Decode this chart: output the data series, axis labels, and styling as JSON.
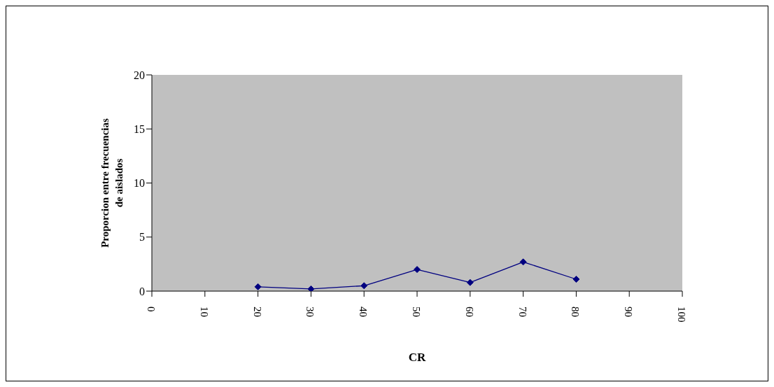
{
  "chart_data": {
    "type": "line",
    "xlabel": "CR",
    "ylabel": "Proporcion entre frecuencias de aislados",
    "categories": [
      "0",
      "10",
      "20",
      "30",
      "40",
      "50",
      "60",
      "70",
      "80",
      "90",
      "100"
    ],
    "series": [
      {
        "color": "#000080",
        "values": [
          null,
          null,
          0.4,
          0.2,
          0.5,
          2.0,
          0.8,
          2.7,
          1.1,
          null,
          null
        ]
      }
    ],
    "ylim": [
      0,
      20
    ],
    "yticks": [
      0,
      5,
      10,
      15,
      20
    ],
    "marker": "diamond",
    "legend": false
  }
}
